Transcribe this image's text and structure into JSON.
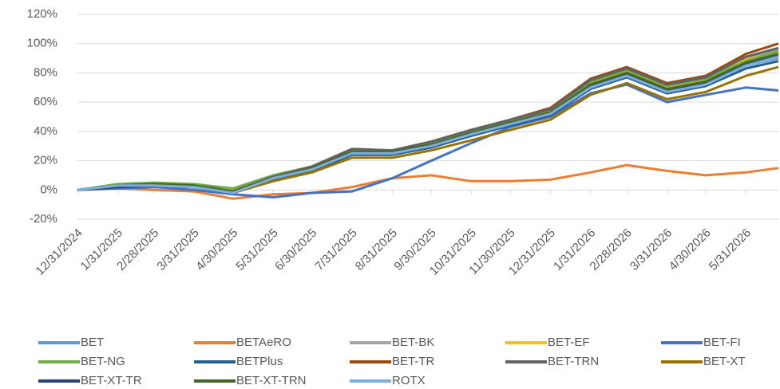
{
  "chart_data": {
    "type": "line",
    "x": [
      "12/31/2024",
      "1/31/2025",
      "2/28/2025",
      "3/31/2025",
      "4/30/2025",
      "5/31/2025",
      "6/30/2025",
      "7/31/2025",
      "8/31/2025",
      "9/30/2025",
      "10/31/2025",
      "11/30/2025",
      "12/31/2025",
      "1/31/2026",
      "2/28/2026",
      "3/31/2026",
      "4/30/2026",
      "5/31/2026",
      "6/25/2026"
    ],
    "xlim": [
      "12/31/2024",
      "6/25/2026"
    ],
    "xticks": [
      "12/31/2024",
      "1/31/2025",
      "2/28/2025",
      "3/31/2025",
      "4/30/2025",
      "5/31/2025",
      "6/30/2025",
      "7/31/2025",
      "8/31/2025",
      "9/30/2025",
      "10/31/2025",
      "11/30/2025",
      "12/31/2025",
      "1/31/2026",
      "2/28/2026",
      "3/31/2026",
      "4/30/2026",
      "5/31/2026"
    ],
    "ylim": [
      -20,
      120
    ],
    "yticks": [
      {
        "value": -20,
        "label": "-20%"
      },
      {
        "value": 0,
        "label": "0%"
      },
      {
        "value": 20,
        "label": "20%"
      },
      {
        "value": 40,
        "label": "40%"
      },
      {
        "value": 60,
        "label": "60%"
      },
      {
        "value": 80,
        "label": "80%"
      },
      {
        "value": 100,
        "label": "100%"
      },
      {
        "value": 120,
        "label": "120%"
      }
    ],
    "grid": true,
    "legend": "bottom",
    "series": [
      {
        "name": "BET",
        "color": "#5b9bd5",
        "values": [
          0,
          3,
          3,
          2,
          -2,
          8,
          14,
          25,
          25,
          30,
          38,
          45,
          52,
          70,
          78,
          68,
          72,
          85,
          90
        ]
      },
      {
        "name": "BETAeRO",
        "color": "#ed7d31",
        "values": [
          0,
          1,
          0,
          -1,
          -6,
          -3,
          -2,
          2,
          8,
          10,
          6,
          6,
          7,
          12,
          17,
          13,
          10,
          12,
          15
        ]
      },
      {
        "name": "BET-BK",
        "color": "#a5a5a5",
        "values": [
          0,
          3,
          4,
          3,
          0,
          9,
          15,
          27,
          27,
          32,
          40,
          47,
          55,
          76,
          83,
          72,
          77,
          90,
          96
        ]
      },
      {
        "name": "BET-EF",
        "color": "#ffc000",
        "values": [
          0,
          3,
          4,
          3,
          0,
          8,
          15,
          26,
          26,
          31,
          39,
          46,
          54,
          73,
          81,
          70,
          75,
          89,
          94
        ]
      },
      {
        "name": "BET-FI",
        "color": "#4472c4",
        "values": [
          0,
          1,
          2,
          0,
          -3,
          -5,
          -2,
          -1,
          8,
          20,
          32,
          43,
          50,
          66,
          72,
          60,
          65,
          70,
          68
        ]
      },
      {
        "name": "BET-NG",
        "color": "#70ad47",
        "values": [
          0,
          4,
          5,
          4,
          1,
          10,
          16,
          27,
          27,
          32,
          40,
          47,
          55,
          74,
          82,
          71,
          76,
          88,
          95
        ]
      },
      {
        "name": "BETPlus",
        "color": "#255e91",
        "values": [
          0,
          2,
          3,
          2,
          -2,
          7,
          13,
          24,
          24,
          29,
          37,
          44,
          51,
          69,
          77,
          66,
          71,
          83,
          88
        ]
      },
      {
        "name": "BET-TR",
        "color": "#9e480e",
        "values": [
          0,
          3,
          4,
          3,
          -1,
          9,
          16,
          28,
          27,
          33,
          41,
          48,
          56,
          76,
          84,
          73,
          78,
          93,
          100
        ]
      },
      {
        "name": "BET-TRN",
        "color": "#636363",
        "values": [
          0,
          3,
          4,
          3,
          -1,
          9,
          16,
          28,
          27,
          33,
          41,
          48,
          55,
          75,
          83,
          72,
          77,
          91,
          97
        ]
      },
      {
        "name": "BET-XT",
        "color": "#997300",
        "values": [
          0,
          2,
          3,
          2,
          -2,
          6,
          12,
          22,
          22,
          27,
          34,
          41,
          48,
          65,
          73,
          62,
          67,
          78,
          84
        ]
      },
      {
        "name": "BET-XT-TR",
        "color": "#264478",
        "values": [
          0,
          2,
          3,
          2,
          -2,
          8,
          14,
          25,
          25,
          30,
          38,
          45,
          52,
          71,
          79,
          68,
          73,
          86,
          92
        ]
      },
      {
        "name": "BET-XT-TRN",
        "color": "#43682b",
        "values": [
          0,
          3,
          4,
          3,
          -1,
          8,
          15,
          26,
          26,
          31,
          39,
          46,
          53,
          72,
          80,
          69,
          74,
          87,
          93
        ]
      },
      {
        "name": "ROTX",
        "color": "#7cafdd",
        "values": [
          0,
          3,
          3,
          2,
          -2,
          8,
          14,
          25,
          25,
          30,
          38,
          45,
          52,
          70,
          78,
          67,
          72,
          85,
          91
        ]
      }
    ]
  }
}
